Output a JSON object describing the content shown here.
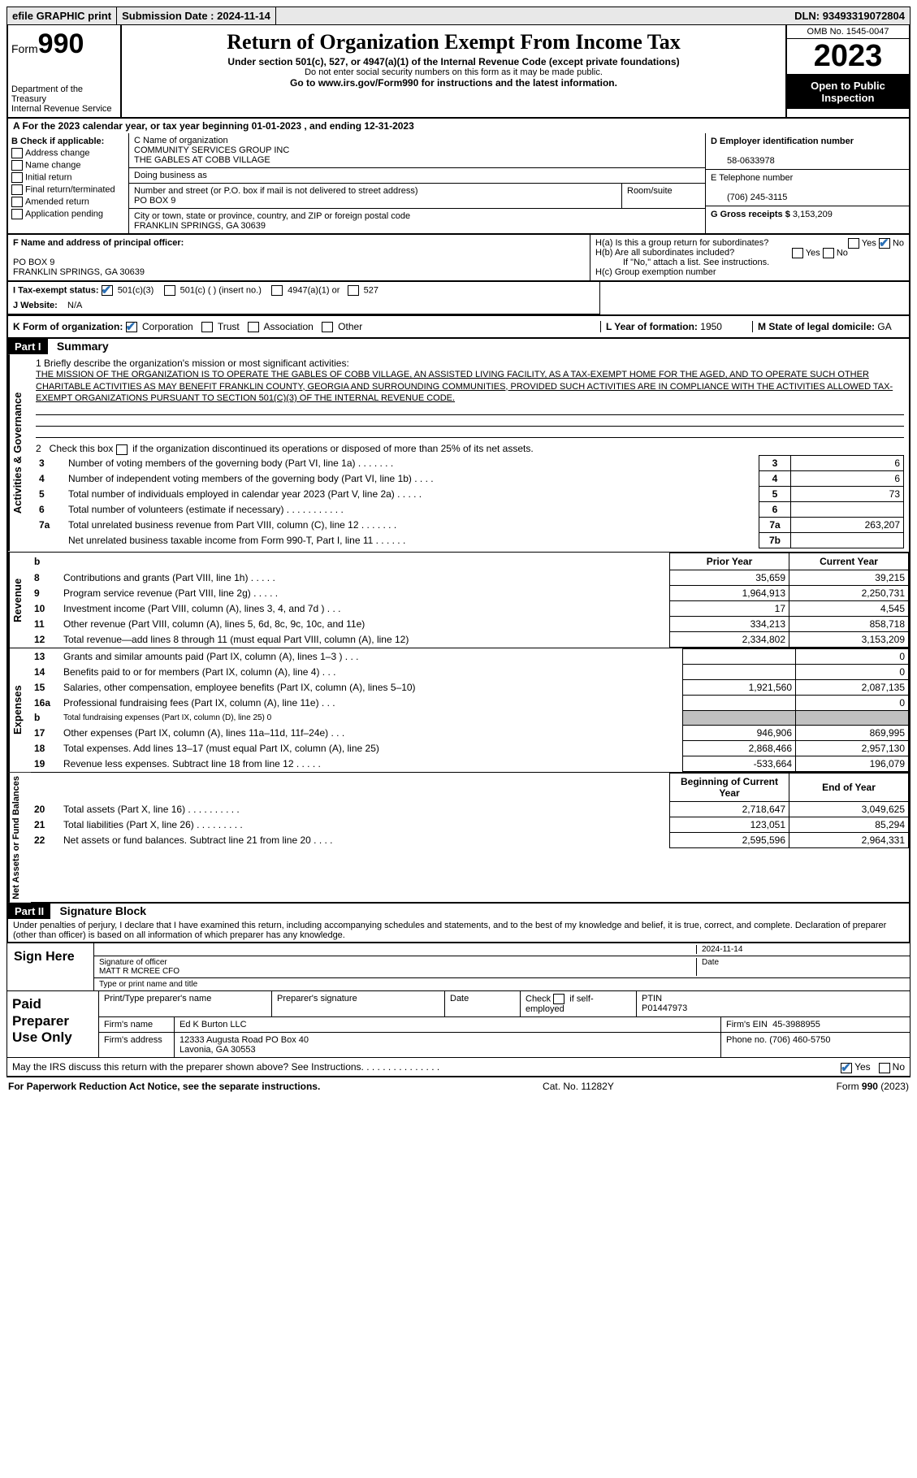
{
  "topbar": {
    "efile": "efile GRAPHIC print",
    "sub_label": "Submission Date :",
    "sub_date": "2024-11-14",
    "dln_label": "DLN:",
    "dln": "93493319072804"
  },
  "header": {
    "form_word": "Form",
    "form_num": "990",
    "dept1": "Department of the Treasury",
    "dept2": "Internal Revenue Service",
    "title": "Return of Organization Exempt From Income Tax",
    "sub": "Under section 501(c), 527, or 4947(a)(1) of the Internal Revenue Code (except private foundations)",
    "ssn": "Do not enter social security numbers on this form as it may be made public.",
    "goto": "Go to www.irs.gov/Form990 for instructions and the latest information.",
    "omb": "OMB No. 1545-0047",
    "year": "2023",
    "insp": "Open to Public Inspection"
  },
  "A": {
    "text": "A For the 2023 calendar year, or tax year beginning 01-01-2023   , and ending 12-31-2023"
  },
  "B": {
    "title": "B Check if applicable:",
    "items": [
      "Address change",
      "Name change",
      "Initial return",
      "Final return/terminated",
      "Amended return",
      "Application pending"
    ]
  },
  "C": {
    "name_label": "C Name of organization",
    "name1": "COMMUNITY SERVICES GROUP INC",
    "name2": "THE GABLES AT COBB VILLAGE",
    "dba": "Doing business as",
    "street_label": "Number and street (or P.O. box if mail is not delivered to street address)",
    "room": "Room/suite",
    "street": "PO BOX 9",
    "city_label": "City or town, state or province, country, and ZIP or foreign postal code",
    "city": "FRANKLIN SPRINGS, GA  30639"
  },
  "D": {
    "ein_label": "D Employer identification number",
    "ein": "58-0633978",
    "phone_label": "E Telephone number",
    "phone": "(706) 245-3115",
    "gross_label": "G Gross receipts $",
    "gross": "3,153,209"
  },
  "F": {
    "label": "F  Name and address of principal officer:",
    "addr1": "PO BOX 9",
    "addr2": "FRANKLIN SPRINGS, GA  30639"
  },
  "H": {
    "a": "H(a)  Is this a group return for subordinates?",
    "b": "H(b)  Are all subordinates included?",
    "bnote": "If \"No,\" attach a list. See instructions.",
    "c": "H(c)  Group exemption number",
    "yes": "Yes",
    "no": "No"
  },
  "I": {
    "label": "I   Tax-exempt status:",
    "o1": "501(c)(3)",
    "o2": "501(c) (  ) (insert no.)",
    "o3": "4947(a)(1) or",
    "o4": "527"
  },
  "J": {
    "label": "J   Website:",
    "val": "N/A"
  },
  "K": {
    "label": "K Form of organization:",
    "o1": "Corporation",
    "o2": "Trust",
    "o3": "Association",
    "o4": "Other"
  },
  "L": {
    "label": "L Year of formation:",
    "val": "1950"
  },
  "M": {
    "label": "M State of legal domicile:",
    "val": "GA"
  },
  "part1": {
    "bar": "Part I",
    "title": "Summary",
    "side_act": "Activities & Governance",
    "side_rev": "Revenue",
    "side_exp": "Expenses",
    "side_net": "Net Assets or Fund Balances",
    "q1": "1  Briefly describe the organization's mission or most significant activities:",
    "mission": "THE MISSION OF THE ORGANIZATION IS TO OPERATE THE GABLES OF COBB VILLAGE, AN ASSISTED LIVING FACILITY, AS A TAX-EXEMPT HOME FOR THE AGED, AND TO OPERATE SUCH OTHER CHARITABLE ACTIVITIES AS MAY BENEFIT FRANKLIN COUNTY, GEORGIA AND SURROUNDING COMMUNITIES, PROVIDED SUCH ACTIVITIES ARE IN COMPLIANCE WITH THE ACTIVITIES ALLOWED TAX-EXEMPT ORGANIZATIONS PURSUANT TO SECTION 501(C)(3) OF THE INTERNAL REVENUE CODE.",
    "q2": "2    Check this box        if the organization discontinued its operations or disposed of more than 25% of its net assets.",
    "rows_a": [
      {
        "n": "3",
        "t": "Number of voting members of the governing body (Part VI, line 1a)   .    .    .    .    .    .    .",
        "l": "3",
        "v": "6"
      },
      {
        "n": "4",
        "t": "Number of independent voting members of the governing body (Part VI, line 1b)   .    .    .    .",
        "l": "4",
        "v": "6"
      },
      {
        "n": "5",
        "t": "Total number of individuals employed in calendar year 2023 (Part V, line 2a)   .    .    .    .    .",
        "l": "5",
        "v": "73"
      },
      {
        "n": "6",
        "t": "Total number of volunteers (estimate if necessary)   .    .    .    .    .    .    .    .    .    .    .",
        "l": "6",
        "v": ""
      },
      {
        "n": "7a",
        "t": "Total unrelated business revenue from Part VIII, column (C), line 12   .    .    .    .    .    .    .",
        "l": "7a",
        "v": "263,207"
      },
      {
        "n": "",
        "t": "Net unrelated business taxable income from Form 990-T, Part I, line 11   .    .    .    .    .    .",
        "l": "7b",
        "v": ""
      }
    ],
    "hdr_b": "b",
    "hdr_prior": "Prior Year",
    "hdr_curr": "Current Year",
    "rows_rev": [
      {
        "n": "8",
        "t": "Contributions and grants (Part VIII, line 1h)   .    .    .    .    .",
        "p": "35,659",
        "c": "39,215"
      },
      {
        "n": "9",
        "t": "Program service revenue (Part VIII, line 2g)   .    .    .    .    .",
        "p": "1,964,913",
        "c": "2,250,731"
      },
      {
        "n": "10",
        "t": "Investment income (Part VIII, column (A), lines 3, 4, and 7d )   .    .    .",
        "p": "17",
        "c": "4,545"
      },
      {
        "n": "11",
        "t": "Other revenue (Part VIII, column (A), lines 5, 6d, 8c, 9c, 10c, and 11e)",
        "p": "334,213",
        "c": "858,718"
      },
      {
        "n": "12",
        "t": "Total revenue—add lines 8 through 11 (must equal Part VIII, column (A), line 12)",
        "p": "2,334,802",
        "c": "3,153,209"
      }
    ],
    "rows_exp": [
      {
        "n": "13",
        "t": "Grants and similar amounts paid (Part IX, column (A), lines 1–3 )   .    .    .",
        "p": "",
        "c": "0"
      },
      {
        "n": "14",
        "t": "Benefits paid to or for members (Part IX, column (A), line 4)   .    .    .",
        "p": "",
        "c": "0"
      },
      {
        "n": "15",
        "t": "Salaries, other compensation, employee benefits (Part IX, column (A), lines 5–10)",
        "p": "1,921,560",
        "c": "2,087,135"
      },
      {
        "n": "16a",
        "t": "Professional fundraising fees (Part IX, column (A), line 11e)   .    .    .",
        "p": "",
        "c": "0"
      },
      {
        "n": "b",
        "t": "Total fundraising expenses (Part IX, column (D), line 25) 0",
        "p": "GREY",
        "c": "GREY"
      },
      {
        "n": "17",
        "t": "Other expenses (Part IX, column (A), lines 11a–11d, 11f–24e)   .    .    .",
        "p": "946,906",
        "c": "869,995"
      },
      {
        "n": "18",
        "t": "Total expenses. Add lines 13–17 (must equal Part IX, column (A), line 25)",
        "p": "2,868,466",
        "c": "2,957,130"
      },
      {
        "n": "19",
        "t": "Revenue less expenses. Subtract line 18 from line 12   .    .    .    .    .",
        "p": "-533,664",
        "c": "196,079"
      }
    ],
    "hdr_beg": "Beginning of Current Year",
    "hdr_end": "End of Year",
    "rows_net": [
      {
        "n": "20",
        "t": "Total assets (Part X, line 16)   .    .    .    .    .    .    .    .    .    .",
        "p": "2,718,647",
        "c": "3,049,625"
      },
      {
        "n": "21",
        "t": "Total liabilities (Part X, line 26)   .    .    .    .    .    .    .    .    .",
        "p": "123,051",
        "c": "85,294"
      },
      {
        "n": "22",
        "t": "Net assets or fund balances. Subtract line 21 from line 20   .    .    .    .",
        "p": "2,595,596",
        "c": "2,964,331"
      }
    ]
  },
  "part2": {
    "bar": "Part II",
    "title": "Signature Block",
    "decl": "Under penalties of perjury, I declare that I have examined this return, including accompanying schedules and statements, and to the best of my knowledge and belief, it is true, correct, and complete. Declaration of preparer (other than officer) is based on all information of which preparer has any knowledge.",
    "sign": "Sign Here",
    "sig_officer": "Signature of officer",
    "sig_name": "MATT R MCREE CFO",
    "sig_type": "Type or print name and title",
    "date_label": "Date",
    "date": "2024-11-14",
    "paid": "Paid Preparer Use Only",
    "prep_name_label": "Print/Type preparer's name",
    "prep_sig_label": "Preparer's signature",
    "check_self": "Check          if self-employed",
    "ptin_label": "PTIN",
    "ptin": "P01447973",
    "firm_name_label": "Firm's name",
    "firm_name": "Ed K Burton LLC",
    "firm_ein_label": "Firm's EIN",
    "firm_ein": "45-3988955",
    "firm_addr_label": "Firm's address",
    "firm_addr1": "12333 Augusta Road PO Box 40",
    "firm_addr2": "Lavonia, GA  30553",
    "firm_phone_label": "Phone no.",
    "firm_phone": "(706) 460-5750",
    "discuss": "May the IRS discuss this return with the preparer shown above? See Instructions.   .    .    .    .    .    .    .    .    .    .    .    .    .    ."
  },
  "footer": {
    "pra": "For Paperwork Reduction Act Notice, see the separate instructions.",
    "cat": "Cat. No. 11282Y",
    "form": "Form 990 (2023)"
  }
}
